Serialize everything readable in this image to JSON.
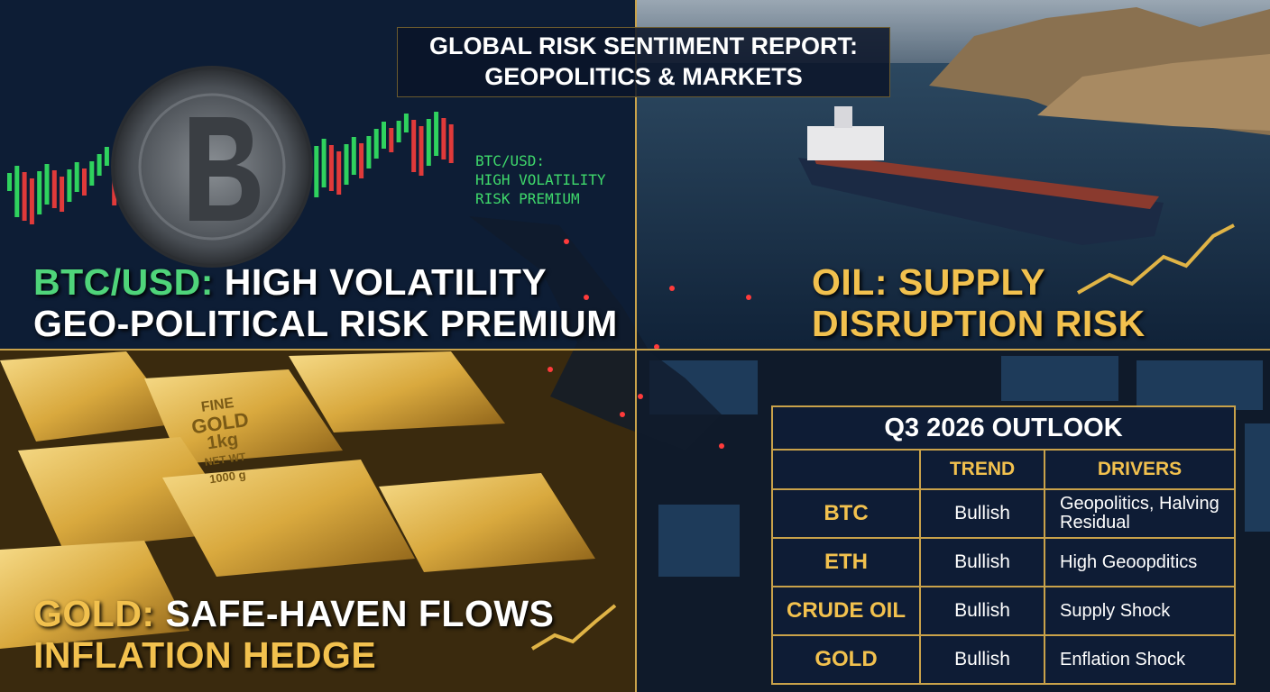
{
  "header": {
    "title": [
      "GLOBAL RISK SENTIMENT REPORT:",
      "GEOPOLITICS & MARKETS"
    ]
  },
  "btc_panel": {
    "chart_label": [
      "BTC/USD:",
      "HIGH VOLATILITY",
      "RISK PREMIUM"
    ],
    "headline_accent": "BTC/USD:",
    "headline_rest": "HIGH VOLATILITY",
    "headline_line2": "GEO-POLITICAL RISK PREMIUM"
  },
  "oil_panel": {
    "headline": [
      "OIL: SUPPLY",
      "DISRUPTION RISK"
    ]
  },
  "gold_panel": {
    "bar_marking": [
      "FINE",
      "GOLD",
      "1kg",
      "NET WT",
      "1000 g"
    ],
    "headline_accent": "GOLD:",
    "headline_rest": "SAFE-HAVEN FLOWS",
    "headline_line2": "INFLATION HEDGE"
  },
  "table": {
    "title": "Q3 2026 OUTLOOK",
    "headers": [
      "TREND",
      "DRIVERS"
    ],
    "rows": [
      [
        "BTC",
        "Bullish",
        "Geopolitics, Halving Residual"
      ],
      [
        "ETH",
        "Bullish",
        "High Geoopditics"
      ],
      [
        "CRUDE OIL",
        "Bullish",
        "Supply Shock"
      ],
      [
        "GOLD",
        "Bullish",
        "Enflation Shock"
      ]
    ]
  }
}
